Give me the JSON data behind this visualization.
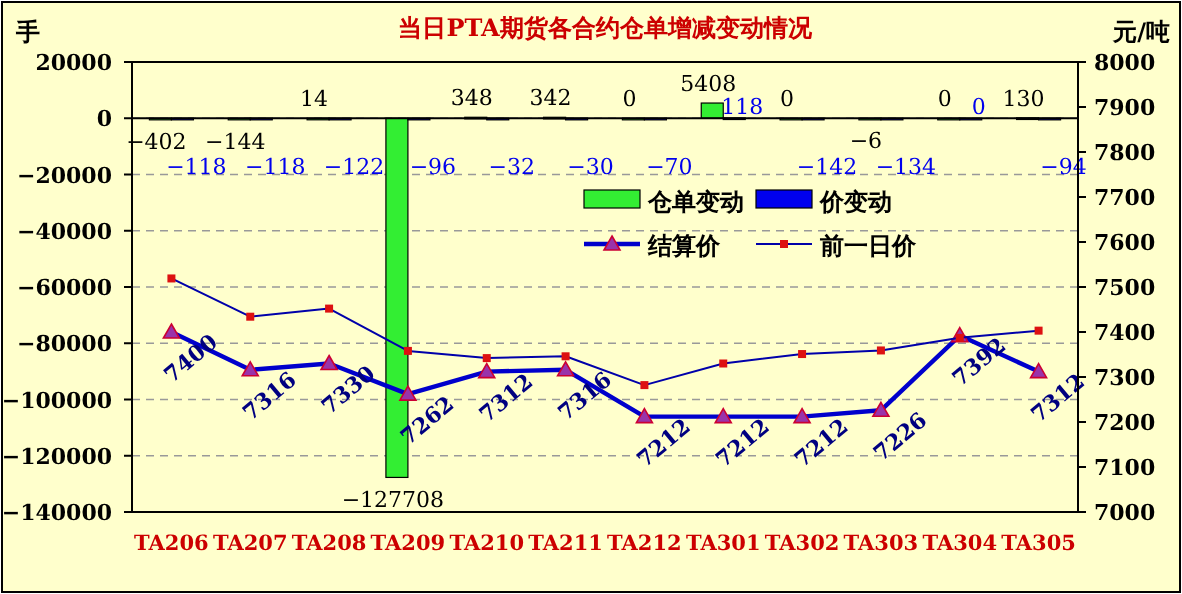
{
  "chart_data": {
    "type": "bar",
    "title": "当日PTA期货各合约仓单增减变动情况",
    "ylabel": "手",
    "y2label": "元/吨",
    "categories": [
      "TA206",
      "TA207",
      "TA208",
      "TA209",
      "TA210",
      "TA211",
      "TA212",
      "TA301",
      "TA302",
      "TA303",
      "TA304",
      "TA305"
    ],
    "series": [
      {
        "name": "仓单变动",
        "color": "#33ee33",
        "values": [
          -402,
          -144,
          14,
          -127708,
          348,
          342,
          0,
          5408,
          0,
          -6,
          0,
          130
        ],
        "value_labels": [
          "−402",
          "−144",
          "14",
          "−127708",
          "348",
          "342",
          "0",
          "5408",
          "0",
          "−6",
          "0",
          "130"
        ]
      },
      {
        "name": "价变动",
        "color": "#0000ee",
        "values": [
          -118,
          -118,
          -122,
          -96,
          -32,
          -30,
          -70,
          118,
          -142,
          -134,
          0,
          -94
        ],
        "value_labels": [
          "−118",
          "−118",
          "−122",
          "−96",
          "−32",
          "−30",
          "−70",
          "118",
          "−142",
          "−134",
          "0",
          "−94"
        ]
      },
      {
        "name": "结算价",
        "type": "line",
        "axis": "y2",
        "color": "#0000cc",
        "marker": "triangle",
        "values": [
          7400,
          7316,
          7330,
          7262,
          7312,
          7316,
          7212,
          7212,
          7212,
          7226,
          7392,
          7312
        ],
        "value_labels": [
          "7400",
          "7316",
          "7330",
          "7262",
          "7312",
          "7316",
          "7212",
          "7212",
          "7212",
          "7226",
          "7392",
          "7312"
        ]
      },
      {
        "name": "前一日价",
        "type": "line",
        "axis": "y2",
        "color": "#0000aa",
        "marker": "square",
        "values": [
          7519,
          7434,
          7452,
          7358,
          7342,
          7346,
          7282,
          7330,
          7351,
          7359,
          7387,
          7403
        ]
      }
    ],
    "ylim": [
      -140000,
      20000
    ],
    "yticks": [
      -140000,
      -120000,
      -100000,
      -80000,
      -60000,
      -40000,
      -20000,
      0,
      20000
    ],
    "y2lim": [
      7000,
      8000
    ],
    "y2ticks": [
      7000,
      7100,
      7200,
      7300,
      7400,
      7500,
      7600,
      7700,
      7800,
      7900,
      8000
    ],
    "grid": "y",
    "legend": "right"
  }
}
